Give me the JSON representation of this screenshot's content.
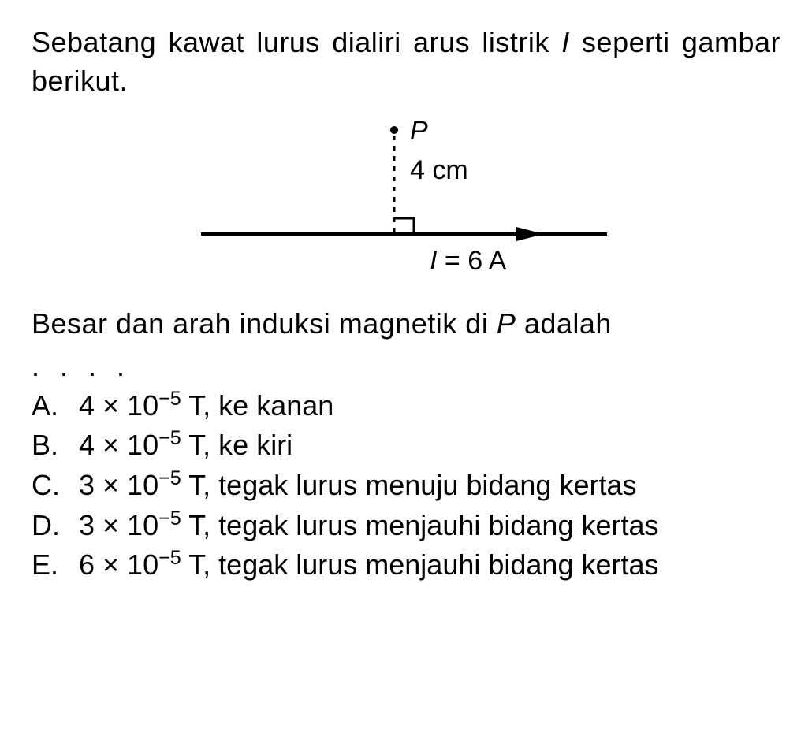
{
  "question": {
    "line1_part1": "Sebatang kawat lurus dialiri arus listrik ",
    "line1_italic": "I",
    "line2": "seperti gambar berikut."
  },
  "diagram": {
    "point_label": "P",
    "distance_label": "4 cm",
    "current_label_prefix": "I",
    "current_label_rest": " = 6 A",
    "colors": {
      "line": "#000000",
      "text": "#000000",
      "background": "#ffffff"
    },
    "font_size_pt": 28,
    "line_width_main": 4,
    "line_width_dashed": 3,
    "arrow_length": 520,
    "vertical_line_height": 105,
    "dash_pattern": "6,7"
  },
  "question2": {
    "part1": "Besar dan arah induksi magnetik di ",
    "italic": "P",
    "part2": " adalah"
  },
  "dots": ". . . .",
  "options": {
    "a": {
      "letter": "A.",
      "prefix": "4 × 10",
      "sup": "−5",
      "rest": " T, ke kanan"
    },
    "b": {
      "letter": "B.",
      "prefix": "4 × 10",
      "sup": "−5",
      "rest": " T, ke kiri"
    },
    "c": {
      "letter": "C.",
      "prefix": "3 × 10",
      "sup": "−5",
      "rest": " T, tegak lurus menuju bidang kertas"
    },
    "d": {
      "letter": "D.",
      "prefix": "3 × 10",
      "sup": "−5",
      "rest": " T, tegak lurus menjauhi bidang kertas"
    },
    "e": {
      "letter": "E.",
      "prefix": "6 × 10",
      "sup": "−5",
      "rest": " T, tegak lurus menjauhi bidang kertas"
    }
  }
}
